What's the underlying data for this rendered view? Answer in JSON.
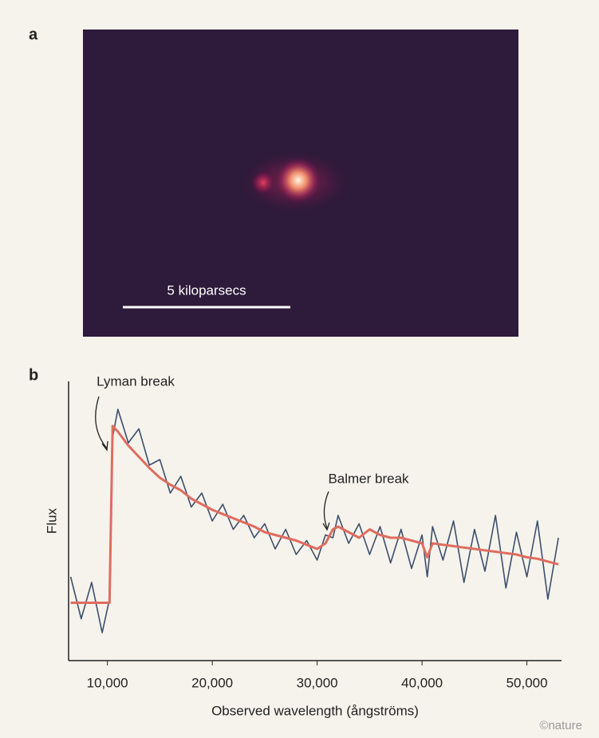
{
  "figure": {
    "panel_a_label": "a",
    "panel_b_label": "b",
    "scale_label": "5 kiloparsecs",
    "credit": "©nature"
  },
  "chart_data": {
    "type": "line",
    "xlabel": "Observed wavelength (ångströms)",
    "ylabel": "Flux",
    "annotations": [
      "Lyman break",
      "Balmer break"
    ],
    "xlim": [
      6300,
      53300
    ],
    "ylim": [
      0,
      100
    ],
    "xticks": [
      {
        "value": 10000,
        "label": "10,000"
      },
      {
        "value": 20000,
        "label": "20,000"
      },
      {
        "value": 30000,
        "label": "30,000"
      },
      {
        "value": 40000,
        "label": "40,000"
      },
      {
        "value": 50000,
        "label": "50,000"
      }
    ],
    "x": [
      6500,
      7500,
      8500,
      9500,
      10200,
      10500,
      11000,
      12000,
      13000,
      14000,
      15000,
      16000,
      17000,
      18000,
      19000,
      20000,
      21000,
      22000,
      23000,
      24000,
      25000,
      26000,
      27000,
      28000,
      29000,
      30000,
      30800,
      31500,
      32000,
      33000,
      34000,
      35000,
      36000,
      37000,
      38000,
      39000,
      40000,
      40500,
      41000,
      42000,
      43000,
      44000,
      45000,
      46000,
      47000,
      48000,
      49000,
      50000,
      51000,
      52000,
      53000
    ],
    "series": [
      {
        "color": "#3d4f6b",
        "values": [
          30,
          15,
          28,
          10,
          22,
          80,
          90,
          78,
          83,
          70,
          72,
          60,
          66,
          55,
          60,
          50,
          56,
          47,
          52,
          44,
          49,
          40,
          47,
          38,
          43,
          36,
          45,
          44,
          52,
          42,
          49,
          38,
          48,
          35,
          47,
          33,
          45,
          30,
          48,
          36,
          50,
          28,
          47,
          32,
          52,
          26,
          46,
          30,
          50,
          22,
          44
        ]
      },
      {
        "color": "#e06c5f",
        "values": [
          20.7,
          20.7,
          20.7,
          20.7,
          20.7,
          84,
          82,
          77,
          73,
          69,
          65.5,
          63,
          61,
          58,
          56,
          54,
          52.5,
          51,
          49.5,
          48,
          46,
          45,
          44,
          43,
          41.5,
          40,
          42,
          47,
          48,
          46,
          44,
          47,
          45,
          44,
          44,
          43,
          42,
          37,
          42,
          41.5,
          41,
          40.5,
          40,
          39.5,
          39,
          38.5,
          38,
          37,
          36.5,
          35.5,
          34.5
        ]
      }
    ]
  }
}
